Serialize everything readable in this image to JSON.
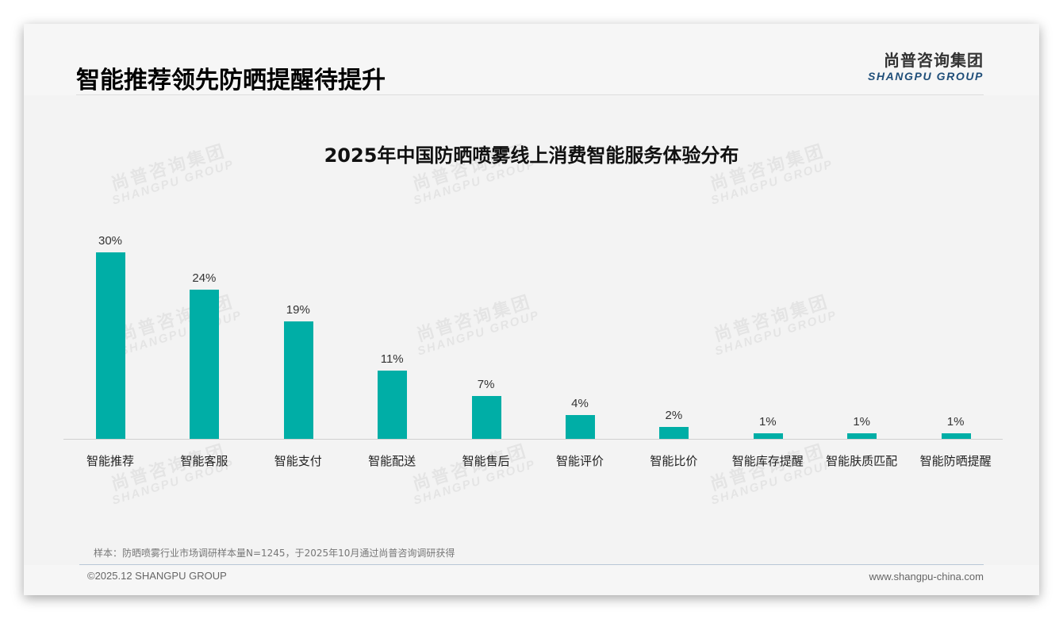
{
  "header": {
    "title": "智能推荐领先防晒提醒待提升",
    "logo_cn": "尚普咨询集团",
    "logo_en": "SHANGPU GROUP"
  },
  "watermark": {
    "cn": "尚普咨询集团",
    "en": "SHANGPU GROUP"
  },
  "chart_data": {
    "type": "bar",
    "title": "2025年中国防晒喷雾线上消费智能服务体验分布",
    "categories": [
      "智能推荐",
      "智能客服",
      "智能支付",
      "智能配送",
      "智能售后",
      "智能评价",
      "智能比价",
      "智能库存提醒",
      "智能肤质匹配",
      "智能防晒提醒"
    ],
    "values": [
      30,
      24,
      19,
      11,
      7,
      4,
      2,
      1,
      1,
      1
    ],
    "value_labels": [
      "30%",
      "24%",
      "19%",
      "11%",
      "7%",
      "4%",
      "2%",
      "1%",
      "1%",
      "1%"
    ],
    "unit": "%",
    "xlabel": "",
    "ylabel": "",
    "ylim": [
      0,
      35
    ],
    "grid": false,
    "legend": "none",
    "bar_color": "#00aea6"
  },
  "footer": {
    "note": "样本：防晒喷雾行业市场调研样本量N=1245，于2025年10月通过尚普咨询调研获得",
    "copyright": "©2025.12 SHANGPU GROUP",
    "website": "www.shangpu-china.com"
  }
}
